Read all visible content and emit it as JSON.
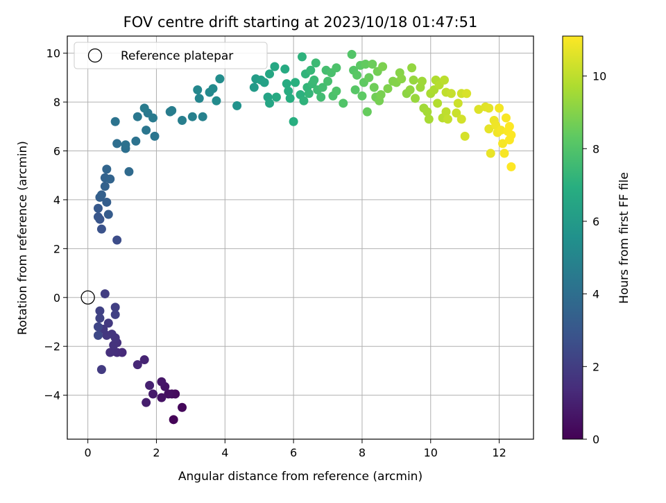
{
  "chart_data": {
    "type": "scatter",
    "title": "FOV centre drift starting at 2023/10/18 01:47:51",
    "xlabel": "Angular distance from reference (arcmin)",
    "ylabel": "Rotation from reference (arcmin)",
    "xlim": [
      -0.6,
      13.0
    ],
    "ylim": [
      -5.8,
      10.7
    ],
    "xticks": [
      0,
      2,
      4,
      6,
      8,
      10,
      12
    ],
    "yticks": [
      -4,
      -2,
      0,
      2,
      4,
      6,
      8,
      10
    ],
    "grid": true,
    "legend": {
      "placement": "top-left",
      "entries": [
        "Reference platepar"
      ]
    },
    "reference_point": {
      "x": 0,
      "y": 0,
      "label": "Reference platepar"
    },
    "colorbar": {
      "label": "Hours from first FF file",
      "colormap": "viridis",
      "range": [
        0,
        11.1
      ],
      "ticks": [
        0,
        2,
        4,
        6,
        8,
        10
      ]
    },
    "points": [
      {
        "x": 2.5,
        "y": -5.0,
        "c": 0.1
      },
      {
        "x": 2.75,
        "y": -4.5,
        "c": 0.2
      },
      {
        "x": 2.55,
        "y": -3.95,
        "c": 0.3
      },
      {
        "x": 2.45,
        "y": -3.95,
        "c": 0.35
      },
      {
        "x": 2.35,
        "y": -3.95,
        "c": 0.45
      },
      {
        "x": 2.15,
        "y": -4.1,
        "c": 0.55
      },
      {
        "x": 2.25,
        "y": -3.65,
        "c": 0.6
      },
      {
        "x": 2.15,
        "y": -3.45,
        "c": 0.7
      },
      {
        "x": 1.9,
        "y": -3.95,
        "c": 0.8
      },
      {
        "x": 1.7,
        "y": -4.3,
        "c": 0.9
      },
      {
        "x": 1.8,
        "y": -3.6,
        "c": 1.0
      },
      {
        "x": 1.65,
        "y": -2.55,
        "c": 1.1
      },
      {
        "x": 1.45,
        "y": -2.75,
        "c": 1.2
      },
      {
        "x": 1.0,
        "y": -2.25,
        "c": 1.3
      },
      {
        "x": 0.85,
        "y": -2.25,
        "c": 1.4
      },
      {
        "x": 0.75,
        "y": -2.2,
        "c": 1.45
      },
      {
        "x": 0.65,
        "y": -2.25,
        "c": 1.5
      },
      {
        "x": 0.85,
        "y": -1.85,
        "c": 1.55
      },
      {
        "x": 0.75,
        "y": -1.95,
        "c": 1.6
      },
      {
        "x": 0.8,
        "y": -1.65,
        "c": 1.65
      },
      {
        "x": 0.7,
        "y": -1.5,
        "c": 1.7
      },
      {
        "x": 0.55,
        "y": -1.55,
        "c": 1.75
      },
      {
        "x": 0.45,
        "y": -1.3,
        "c": 1.8
      },
      {
        "x": 0.6,
        "y": -1.05,
        "c": 1.85
      },
      {
        "x": 0.4,
        "y": -2.95,
        "c": 1.9
      },
      {
        "x": 0.5,
        "y": 0.15,
        "c": 2.0
      },
      {
        "x": 0.8,
        "y": -0.4,
        "c": 2.05
      },
      {
        "x": 0.8,
        "y": -0.7,
        "c": 2.1
      },
      {
        "x": 0.35,
        "y": -0.55,
        "c": 2.15
      },
      {
        "x": 0.35,
        "y": -0.85,
        "c": 2.2
      },
      {
        "x": 0.3,
        "y": -1.2,
        "c": 2.3
      },
      {
        "x": 0.3,
        "y": -1.55,
        "c": 2.4
      },
      {
        "x": 0.85,
        "y": 2.35,
        "c": 2.6
      },
      {
        "x": 0.4,
        "y": 2.8,
        "c": 2.8
      },
      {
        "x": 0.35,
        "y": 3.2,
        "c": 2.9
      },
      {
        "x": 0.3,
        "y": 3.3,
        "c": 3.0
      },
      {
        "x": 0.3,
        "y": 3.65,
        "c": 3.1
      },
      {
        "x": 0.6,
        "y": 3.4,
        "c": 3.2
      },
      {
        "x": 0.55,
        "y": 3.9,
        "c": 3.3
      },
      {
        "x": 0.35,
        "y": 4.1,
        "c": 3.35
      },
      {
        "x": 0.4,
        "y": 4.2,
        "c": 3.4
      },
      {
        "x": 0.5,
        "y": 4.55,
        "c": 3.45
      },
      {
        "x": 0.5,
        "y": 4.9,
        "c": 3.5
      },
      {
        "x": 0.65,
        "y": 4.85,
        "c": 3.55
      },
      {
        "x": 0.55,
        "y": 5.25,
        "c": 3.6
      },
      {
        "x": 1.2,
        "y": 5.15,
        "c": 3.8
      },
      {
        "x": 0.85,
        "y": 6.3,
        "c": 4.0
      },
      {
        "x": 1.1,
        "y": 6.1,
        "c": 4.05
      },
      {
        "x": 1.1,
        "y": 6.25,
        "c": 4.1
      },
      {
        "x": 1.4,
        "y": 6.4,
        "c": 4.15
      },
      {
        "x": 0.8,
        "y": 7.2,
        "c": 4.2
      },
      {
        "x": 1.95,
        "y": 6.6,
        "c": 4.3
      },
      {
        "x": 1.7,
        "y": 6.85,
        "c": 4.35
      },
      {
        "x": 1.45,
        "y": 7.4,
        "c": 4.4
      },
      {
        "x": 1.75,
        "y": 7.55,
        "c": 4.45
      },
      {
        "x": 1.9,
        "y": 7.35,
        "c": 4.5
      },
      {
        "x": 1.65,
        "y": 7.75,
        "c": 4.55
      },
      {
        "x": 2.4,
        "y": 7.6,
        "c": 4.6
      },
      {
        "x": 2.45,
        "y": 7.65,
        "c": 4.65
      },
      {
        "x": 2.75,
        "y": 7.25,
        "c": 4.7
      },
      {
        "x": 3.05,
        "y": 7.4,
        "c": 4.8
      },
      {
        "x": 3.35,
        "y": 7.4,
        "c": 4.85
      },
      {
        "x": 3.25,
        "y": 8.15,
        "c": 5.0
      },
      {
        "x": 3.2,
        "y": 8.5,
        "c": 5.1
      },
      {
        "x": 3.55,
        "y": 8.4,
        "c": 5.2
      },
      {
        "x": 3.65,
        "y": 8.55,
        "c": 5.25
      },
      {
        "x": 3.75,
        "y": 8.05,
        "c": 5.3
      },
      {
        "x": 3.85,
        "y": 8.95,
        "c": 5.35
      },
      {
        "x": 4.35,
        "y": 7.85,
        "c": 5.6
      },
      {
        "x": 4.85,
        "y": 8.6,
        "c": 6.0
      },
      {
        "x": 4.9,
        "y": 8.95,
        "c": 6.1
      },
      {
        "x": 5.05,
        "y": 8.9,
        "c": 6.2
      },
      {
        "x": 5.15,
        "y": 8.8,
        "c": 6.3
      },
      {
        "x": 5.25,
        "y": 8.2,
        "c": 6.4
      },
      {
        "x": 5.3,
        "y": 7.95,
        "c": 6.5
      },
      {
        "x": 5.3,
        "y": 9.15,
        "c": 6.55
      },
      {
        "x": 5.45,
        "y": 9.45,
        "c": 6.6
      },
      {
        "x": 5.5,
        "y": 8.2,
        "c": 6.7
      },
      {
        "x": 5.75,
        "y": 9.35,
        "c": 6.75
      },
      {
        "x": 5.8,
        "y": 8.75,
        "c": 6.8
      },
      {
        "x": 5.85,
        "y": 8.45,
        "c": 6.85
      },
      {
        "x": 5.9,
        "y": 8.15,
        "c": 6.9
      },
      {
        "x": 6.0,
        "y": 7.2,
        "c": 6.95
      },
      {
        "x": 6.05,
        "y": 8.8,
        "c": 7.0
      },
      {
        "x": 6.2,
        "y": 8.3,
        "c": 7.05
      },
      {
        "x": 6.25,
        "y": 9.85,
        "c": 7.1
      },
      {
        "x": 6.3,
        "y": 8.05,
        "c": 7.15
      },
      {
        "x": 6.35,
        "y": 9.15,
        "c": 7.2
      },
      {
        "x": 6.4,
        "y": 8.6,
        "c": 7.25
      },
      {
        "x": 6.45,
        "y": 8.35,
        "c": 7.3
      },
      {
        "x": 6.5,
        "y": 9.3,
        "c": 7.35
      },
      {
        "x": 6.55,
        "y": 8.75,
        "c": 7.4
      },
      {
        "x": 6.6,
        "y": 8.9,
        "c": 7.45
      },
      {
        "x": 6.65,
        "y": 9.6,
        "c": 7.5
      },
      {
        "x": 6.7,
        "y": 8.5,
        "c": 7.55
      },
      {
        "x": 6.8,
        "y": 8.2,
        "c": 7.6
      },
      {
        "x": 6.85,
        "y": 8.6,
        "c": 7.65
      },
      {
        "x": 6.95,
        "y": 9.3,
        "c": 7.7
      },
      {
        "x": 7.0,
        "y": 8.85,
        "c": 7.75
      },
      {
        "x": 7.1,
        "y": 9.2,
        "c": 7.8
      },
      {
        "x": 7.15,
        "y": 8.25,
        "c": 7.85
      },
      {
        "x": 7.25,
        "y": 9.4,
        "c": 7.9
      },
      {
        "x": 7.25,
        "y": 8.45,
        "c": 7.95
      },
      {
        "x": 7.45,
        "y": 7.95,
        "c": 8.0
      },
      {
        "x": 7.7,
        "y": 9.95,
        "c": 8.05
      },
      {
        "x": 7.75,
        "y": 9.3,
        "c": 8.1
      },
      {
        "x": 7.8,
        "y": 8.5,
        "c": 8.15
      },
      {
        "x": 7.85,
        "y": 9.1,
        "c": 8.2
      },
      {
        "x": 7.95,
        "y": 9.5,
        "c": 8.25
      },
      {
        "x": 8.0,
        "y": 8.25,
        "c": 8.3
      },
      {
        "x": 8.05,
        "y": 8.8,
        "c": 8.35
      },
      {
        "x": 8.1,
        "y": 9.55,
        "c": 8.4
      },
      {
        "x": 8.15,
        "y": 7.6,
        "c": 8.45
      },
      {
        "x": 8.2,
        "y": 9.0,
        "c": 8.5
      },
      {
        "x": 8.3,
        "y": 9.55,
        "c": 8.55
      },
      {
        "x": 8.35,
        "y": 8.6,
        "c": 8.6
      },
      {
        "x": 8.4,
        "y": 8.2,
        "c": 8.65
      },
      {
        "x": 8.45,
        "y": 9.25,
        "c": 8.7
      },
      {
        "x": 8.5,
        "y": 8.05,
        "c": 8.75
      },
      {
        "x": 8.55,
        "y": 8.3,
        "c": 8.8
      },
      {
        "x": 8.6,
        "y": 9.45,
        "c": 8.85
      },
      {
        "x": 8.75,
        "y": 8.55,
        "c": 8.9
      },
      {
        "x": 8.9,
        "y": 8.85,
        "c": 8.95
      },
      {
        "x": 9.0,
        "y": 8.8,
        "c": 9.0
      },
      {
        "x": 9.1,
        "y": 9.2,
        "c": 9.05
      },
      {
        "x": 9.15,
        "y": 8.95,
        "c": 9.1
      },
      {
        "x": 9.3,
        "y": 8.35,
        "c": 9.15
      },
      {
        "x": 9.4,
        "y": 8.5,
        "c": 9.2
      },
      {
        "x": 9.45,
        "y": 9.4,
        "c": 9.25
      },
      {
        "x": 9.5,
        "y": 8.9,
        "c": 9.3
      },
      {
        "x": 9.55,
        "y": 8.15,
        "c": 9.35
      },
      {
        "x": 9.7,
        "y": 8.6,
        "c": 9.4
      },
      {
        "x": 9.75,
        "y": 8.85,
        "c": 9.45
      },
      {
        "x": 9.8,
        "y": 7.75,
        "c": 9.5
      },
      {
        "x": 9.9,
        "y": 7.6,
        "c": 9.55
      },
      {
        "x": 9.95,
        "y": 7.3,
        "c": 9.6
      },
      {
        "x": 10.0,
        "y": 8.35,
        "c": 9.65
      },
      {
        "x": 10.1,
        "y": 8.5,
        "c": 9.7
      },
      {
        "x": 10.15,
        "y": 8.9,
        "c": 9.75
      },
      {
        "x": 10.2,
        "y": 7.95,
        "c": 9.8
      },
      {
        "x": 10.25,
        "y": 8.7,
        "c": 9.85
      },
      {
        "x": 10.35,
        "y": 7.35,
        "c": 9.9
      },
      {
        "x": 10.4,
        "y": 8.9,
        "c": 9.95
      },
      {
        "x": 10.45,
        "y": 7.6,
        "c": 10.0
      },
      {
        "x": 10.45,
        "y": 8.4,
        "c": 10.05
      },
      {
        "x": 10.5,
        "y": 7.3,
        "c": 10.1
      },
      {
        "x": 10.6,
        "y": 8.35,
        "c": 10.15
      },
      {
        "x": 10.75,
        "y": 7.55,
        "c": 10.2
      },
      {
        "x": 10.8,
        "y": 7.95,
        "c": 10.25
      },
      {
        "x": 10.9,
        "y": 8.35,
        "c": 10.3
      },
      {
        "x": 10.9,
        "y": 7.3,
        "c": 10.35
      },
      {
        "x": 11.0,
        "y": 6.6,
        "c": 10.4
      },
      {
        "x": 11.05,
        "y": 8.35,
        "c": 10.45
      },
      {
        "x": 11.4,
        "y": 7.7,
        "c": 10.55
      },
      {
        "x": 11.6,
        "y": 7.8,
        "c": 10.6
      },
      {
        "x": 11.7,
        "y": 7.75,
        "c": 10.65
      },
      {
        "x": 11.7,
        "y": 6.9,
        "c": 10.7
      },
      {
        "x": 11.75,
        "y": 5.9,
        "c": 10.75
      },
      {
        "x": 11.85,
        "y": 7.25,
        "c": 10.8
      },
      {
        "x": 11.9,
        "y": 7.05,
        "c": 10.85
      },
      {
        "x": 11.95,
        "y": 6.75,
        "c": 10.9
      },
      {
        "x": 12.0,
        "y": 7.75,
        "c": 10.92
      },
      {
        "x": 12.05,
        "y": 6.85,
        "c": 10.95
      },
      {
        "x": 12.1,
        "y": 6.3,
        "c": 10.97
      },
      {
        "x": 12.15,
        "y": 5.9,
        "c": 11.0
      },
      {
        "x": 12.2,
        "y": 7.35,
        "c": 11.02
      },
      {
        "x": 12.25,
        "y": 6.8,
        "c": 11.04
      },
      {
        "x": 12.3,
        "y": 6.45,
        "c": 11.06
      },
      {
        "x": 12.3,
        "y": 7.0,
        "c": 11.08
      },
      {
        "x": 12.35,
        "y": 6.65,
        "c": 11.09
      },
      {
        "x": 12.35,
        "y": 5.35,
        "c": 11.1
      }
    ]
  }
}
